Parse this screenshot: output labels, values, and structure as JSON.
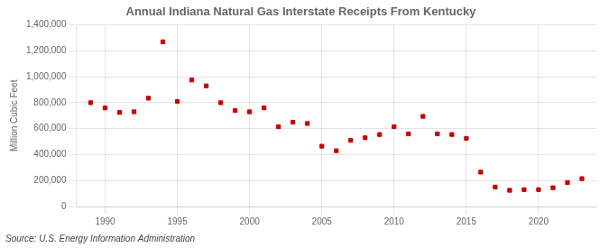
{
  "chart_data": {
    "type": "scatter",
    "title": "Annual Indiana Natural Gas Interstate Receipts From Kentucky",
    "ylabel": "Million Cubic Feet",
    "annotations": [
      "Source: U.S. Energy Information Administration"
    ],
    "x": [
      1989,
      1990,
      1991,
      1992,
      1993,
      1994,
      1995,
      1996,
      1997,
      1998,
      1999,
      2000,
      2001,
      2002,
      2003,
      2004,
      2005,
      2006,
      2007,
      2008,
      2009,
      2010,
      2011,
      2012,
      2013,
      2014,
      2015,
      2016,
      2017,
      2018,
      2019,
      2020,
      2021,
      2022,
      2023
    ],
    "values": [
      800000,
      760000,
      725000,
      730000,
      835000,
      1270000,
      810000,
      975000,
      930000,
      800000,
      740000,
      730000,
      760000,
      615000,
      650000,
      640000,
      465000,
      430000,
      510000,
      530000,
      555000,
      615000,
      560000,
      695000,
      560000,
      555000,
      525000,
      265000,
      150000,
      125000,
      130000,
      130000,
      145000,
      185000,
      215000
    ],
    "color": "#cc0000",
    "marker": "square",
    "xlim": [
      1988,
      2024
    ],
    "xticks": [
      1990,
      1995,
      2000,
      2005,
      2010,
      2015,
      2020
    ],
    "ylim": [
      0,
      1400000
    ],
    "yticks": [
      0,
      {
        "value": 200000,
        "label": "200,000"
      },
      {
        "value": 400000,
        "label": "400,000"
      },
      {
        "value": 600000,
        "label": "600,000"
      },
      {
        "value": 800000,
        "label": "800,000"
      },
      {
        "value": 1000000,
        "label": "1,000,000"
      },
      {
        "value": 1200000,
        "label": "1,200,000"
      },
      {
        "value": 1400000,
        "label": "1,400,000"
      }
    ],
    "grid": true
  }
}
